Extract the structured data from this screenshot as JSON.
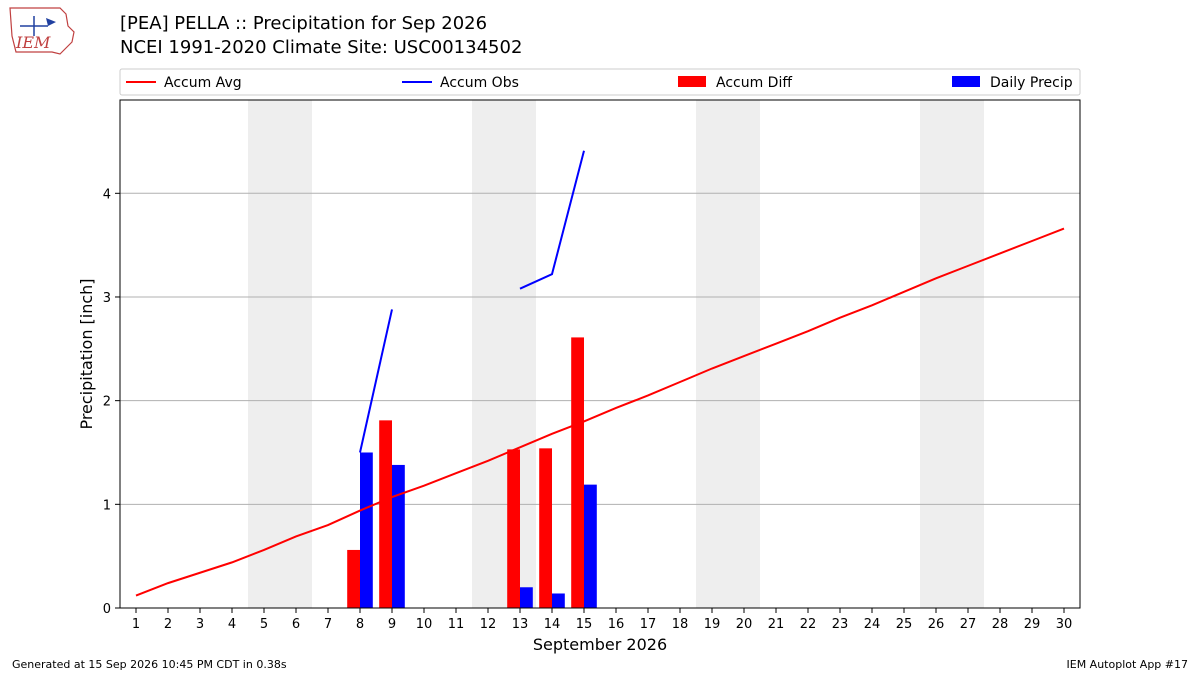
{
  "header": {
    "title_line1": "[PEA] PELLA :: Precipitation for Sep 2026",
    "title_line2": "NCEI 1991-2020 Climate Site: USC00134502",
    "logo_text": "IEM"
  },
  "footer": {
    "left": "Generated at 15 Sep 2026 10:45 PM CDT in 0.38s",
    "right": "IEM Autoplot App #17"
  },
  "colors": {
    "accum_avg": "#ff0000",
    "accum_obs": "#0000ff",
    "accum_diff": "#ff0000",
    "daily_precip": "#0000ff",
    "weekend_shade": "#eeeeee",
    "grid": "#b0b0b0"
  },
  "chart_data": {
    "type": "bar",
    "xlabel": "September 2026",
    "ylabel": "Precipitation [inch]",
    "xlim": [
      0.5,
      30.5
    ],
    "ylim": [
      0,
      4.9
    ],
    "x_ticks": [
      1,
      2,
      3,
      4,
      5,
      6,
      7,
      8,
      9,
      10,
      11,
      12,
      13,
      14,
      15,
      16,
      17,
      18,
      19,
      20,
      21,
      22,
      23,
      24,
      25,
      26,
      27,
      28,
      29,
      30
    ],
    "y_ticks": [
      0,
      1,
      2,
      3,
      4
    ],
    "grid": "horizontal",
    "legend_position": "top",
    "shaded_days": [
      [
        5,
        6
      ],
      [
        12,
        13
      ],
      [
        19,
        20
      ],
      [
        26,
        27
      ]
    ],
    "series": [
      {
        "name": "Accum Avg",
        "kind": "line",
        "x": [
          1,
          2,
          3,
          4,
          5,
          6,
          7,
          8,
          9,
          10,
          11,
          12,
          13,
          14,
          15,
          16,
          17,
          18,
          19,
          20,
          21,
          22,
          23,
          24,
          25,
          26,
          27,
          28,
          29,
          30
        ],
        "values": [
          0.12,
          0.24,
          0.34,
          0.44,
          0.56,
          0.69,
          0.8,
          0.94,
          1.07,
          1.18,
          1.3,
          1.42,
          1.55,
          1.68,
          1.8,
          1.93,
          2.05,
          2.18,
          2.31,
          2.43,
          2.55,
          2.67,
          2.8,
          2.92,
          3.05,
          3.18,
          3.3,
          3.42,
          3.54,
          3.66
        ]
      },
      {
        "name": "Accum Obs",
        "kind": "line",
        "segments": [
          {
            "x": [
              8,
              9
            ],
            "values": [
              1.5,
              2.88
            ]
          },
          {
            "x": [
              13,
              14,
              15
            ],
            "values": [
              3.08,
              3.22,
              4.41
            ]
          }
        ]
      },
      {
        "name": "Accum Diff",
        "kind": "bar",
        "x": [
          8,
          9,
          13,
          14,
          15
        ],
        "values": [
          0.56,
          1.81,
          1.53,
          1.54,
          2.61
        ]
      },
      {
        "name": "Daily Precip",
        "kind": "bar",
        "x": [
          8,
          9,
          13,
          14,
          15
        ],
        "values": [
          1.5,
          1.38,
          0.2,
          0.14,
          1.19
        ]
      }
    ]
  }
}
